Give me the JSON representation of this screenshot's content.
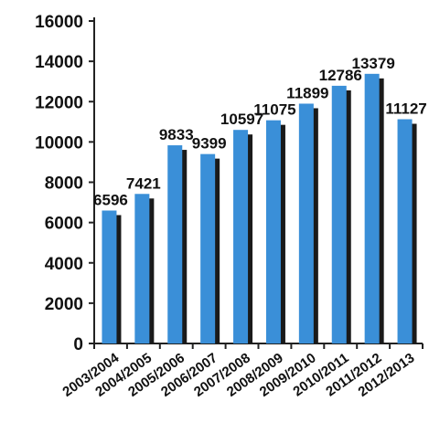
{
  "chart_data": {
    "type": "bar",
    "title": "",
    "xlabel": "",
    "ylabel": "",
    "categories": [
      "2003/2004",
      "2004/2005",
      "2005/2006",
      "2006/2007",
      "2007/2008",
      "2008/2009",
      "2009/2010",
      "2010/2011",
      "2011/2012",
      "2012/2013"
    ],
    "values": [
      6596,
      7421,
      9833,
      9399,
      10597,
      11075,
      11899,
      12786,
      13379,
      11127
    ],
    "data_labels": [
      "6596",
      "7421",
      "9833",
      "9399",
      "10597",
      "11075",
      "11899",
      "12786",
      "13379",
      "11127"
    ],
    "ylim": [
      0,
      16000
    ],
    "yticks": [
      0,
      2000,
      4000,
      6000,
      8000,
      10000,
      12000,
      14000,
      16000
    ],
    "ytick_labels": [
      "0",
      "2000",
      "4000",
      "6000",
      "8000",
      "10000",
      "12000",
      "14000",
      "16000"
    ],
    "grid": false,
    "legend": "none",
    "bar_color": "#3a8fd8",
    "bar_shadow_color": "#1a1a1a",
    "axis_color": "#222222"
  }
}
